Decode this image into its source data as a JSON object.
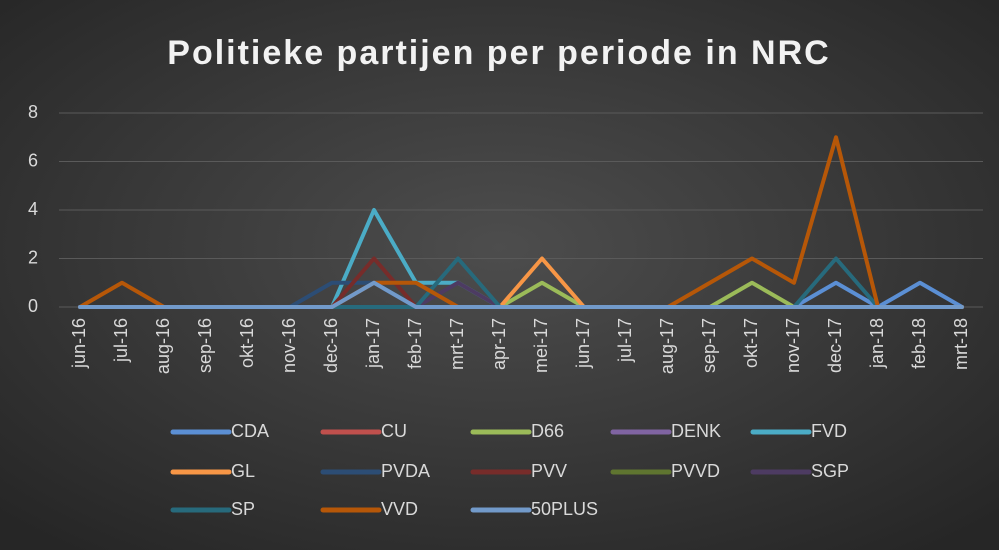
{
  "chart_data": {
    "type": "line",
    "title": "Politieke partijen per periode in NRC",
    "categories": [
      "jun-16",
      "jul-16",
      "aug-16",
      "sep-16",
      "okt-16",
      "nov-16",
      "dec-16",
      "jan-17",
      "feb-17",
      "mrt-17",
      "apr-17",
      "mei-17",
      "jun-17",
      "jul-17",
      "aug-17",
      "sep-17",
      "okt-17",
      "nov-17",
      "dec-17",
      "jan-18",
      "feb-18",
      "mrt-18"
    ],
    "series": [
      {
        "name": "CDA",
        "color": "#5b8fd4",
        "values": [
          0,
          0,
          0,
          0,
          0,
          0,
          0,
          1,
          0,
          0,
          0,
          0,
          0,
          0,
          0,
          0,
          0,
          0,
          1,
          0,
          1,
          0
        ]
      },
      {
        "name": "CU",
        "color": "#c0504d",
        "values": [
          0,
          0,
          0,
          0,
          0,
          0,
          0,
          0,
          0,
          0,
          0,
          0,
          0,
          0,
          0,
          0,
          0,
          0,
          0,
          0,
          0,
          0
        ]
      },
      {
        "name": "D66",
        "color": "#9bbb59",
        "values": [
          0,
          0,
          0,
          0,
          0,
          0,
          0,
          0,
          0,
          0,
          0,
          1,
          0,
          0,
          0,
          0,
          1,
          0,
          0,
          0,
          0,
          0
        ]
      },
      {
        "name": "DENK",
        "color": "#8064a2",
        "values": [
          0,
          0,
          0,
          0,
          0,
          0,
          0,
          0,
          0,
          0,
          0,
          0,
          0,
          0,
          0,
          0,
          0,
          0,
          0,
          0,
          0,
          0
        ]
      },
      {
        "name": "FVD",
        "color": "#4bacc6",
        "values": [
          0,
          0,
          0,
          0,
          0,
          0,
          0,
          4,
          1,
          1,
          0,
          0,
          0,
          0,
          0,
          0,
          0,
          0,
          0,
          0,
          0,
          0
        ]
      },
      {
        "name": "GL",
        "color": "#f79646",
        "values": [
          0,
          0,
          0,
          0,
          0,
          0,
          0,
          0,
          0,
          0,
          0,
          2,
          0,
          0,
          0,
          0,
          0,
          0,
          0,
          0,
          0,
          0
        ]
      },
      {
        "name": "PVDA",
        "color": "#2c4d75",
        "values": [
          0,
          0,
          0,
          0,
          0,
          0,
          1,
          1,
          0,
          0,
          0,
          0,
          0,
          0,
          0,
          0,
          0,
          0,
          0,
          0,
          0,
          0
        ]
      },
      {
        "name": "PVV",
        "color": "#772c2a",
        "values": [
          0,
          0,
          0,
          0,
          0,
          0,
          0,
          2,
          0,
          0,
          0,
          0,
          0,
          0,
          0,
          0,
          0,
          0,
          0,
          0,
          0,
          0
        ]
      },
      {
        "name": "PVVD",
        "color": "#5f7530",
        "values": [
          0,
          0,
          0,
          0,
          0,
          0,
          0,
          0,
          0,
          0,
          0,
          0,
          0,
          0,
          0,
          0,
          0,
          0,
          0,
          0,
          0,
          0
        ]
      },
      {
        "name": "SGP",
        "color": "#4d3b62",
        "values": [
          0,
          0,
          0,
          0,
          0,
          0,
          0,
          0,
          0,
          1,
          0,
          0,
          0,
          0,
          0,
          0,
          0,
          0,
          0,
          0,
          0,
          0
        ]
      },
      {
        "name": "SP",
        "color": "#276a7c",
        "values": [
          0,
          0,
          0,
          0,
          0,
          0,
          0,
          0,
          0,
          2,
          0,
          0,
          0,
          0,
          0,
          0,
          0,
          0,
          2,
          0,
          0,
          0
        ]
      },
      {
        "name": "VVD",
        "color": "#b65708",
        "values": [
          0,
          1,
          0,
          0,
          0,
          0,
          0,
          1,
          1,
          0,
          0,
          0,
          0,
          0,
          0,
          1,
          2,
          1,
          7,
          0,
          0,
          0
        ]
      },
      {
        "name": "50PLUS",
        "color": "#729aca",
        "values": [
          0,
          0,
          0,
          0,
          0,
          0,
          0,
          1,
          0,
          0,
          0,
          0,
          0,
          0,
          0,
          0,
          0,
          0,
          0,
          0,
          0,
          0
        ]
      }
    ],
    "ylim": [
      0,
      8
    ],
    "yticks": [
      0,
      2,
      4,
      6,
      8
    ],
    "grid": true,
    "legend": "bottom"
  }
}
